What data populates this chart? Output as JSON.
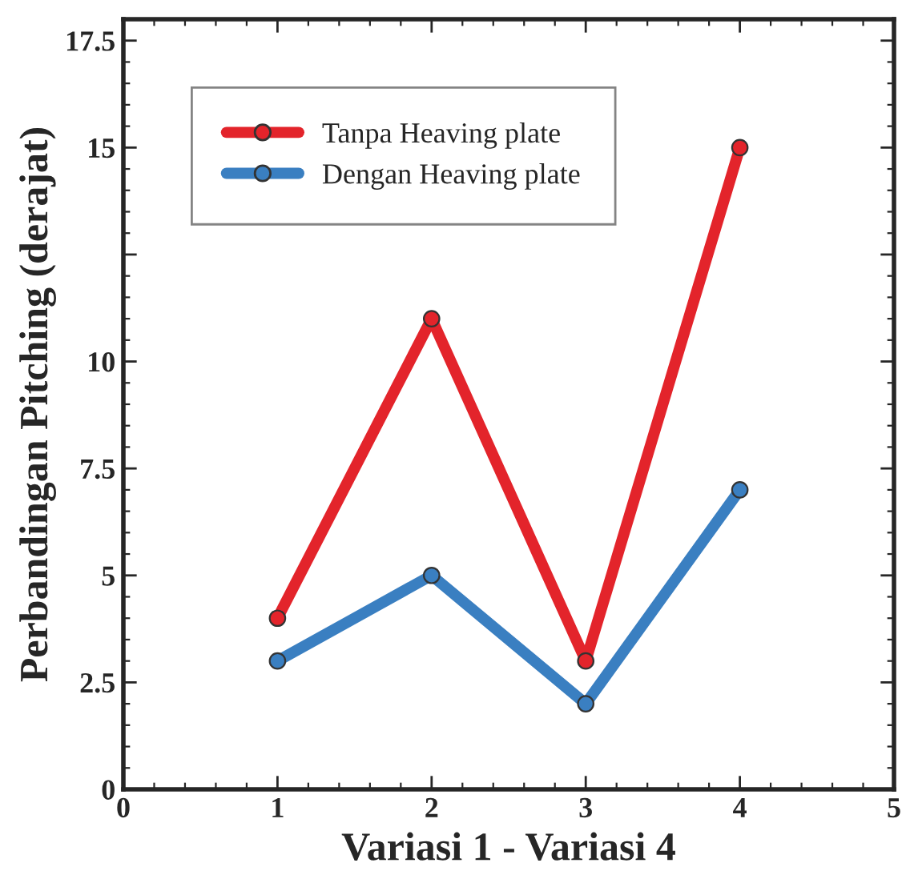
{
  "chart_data": {
    "type": "line",
    "xlabel": "Variasi 1 - Variasi 4",
    "ylabel": "Perbandingan Pitching (derajat)",
    "x": [
      1,
      2,
      3,
      4
    ],
    "series": [
      {
        "name": "Tanpa Heaving plate",
        "color": "#e3242b",
        "values": [
          4,
          11,
          3,
          15
        ]
      },
      {
        "name": "Dengan Heaving plate",
        "color": "#3a7fc1",
        "values": [
          3,
          5,
          2,
          7
        ]
      }
    ],
    "xlim": [
      0,
      5
    ],
    "xticks": [
      0,
      1,
      2,
      3,
      4,
      5
    ],
    "ylim": [
      0,
      18
    ],
    "yticks": [
      0,
      2.5,
      5,
      7.5,
      10,
      {
        "value": 12.5,
        "label": null
      },
      15,
      17.5
    ],
    "marker": "circle",
    "line_style": "solid",
    "grid": false,
    "legend": "top left"
  }
}
